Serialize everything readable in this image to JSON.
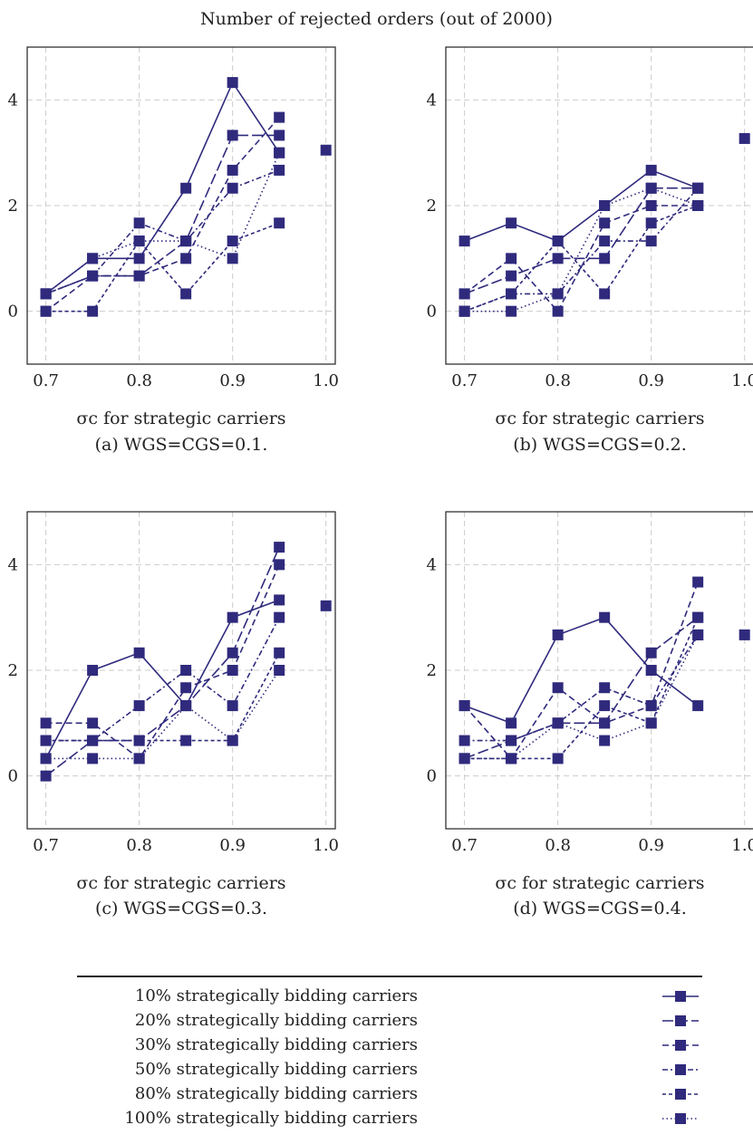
{
  "title": "Number of rejected orders (out of 2000)",
  "colors": {
    "series": "#2f2a7c",
    "grid": "#cccccc"
  },
  "legend": [
    {
      "label": "10% strategically bidding carriers",
      "dash": "solid"
    },
    {
      "label": "20% strategically bidding carriers",
      "dash": "long-dash"
    },
    {
      "label": "30% strategically bidding carriers",
      "dash": "dash"
    },
    {
      "label": "50% strategically bidding carriers",
      "dash": "dash-dot"
    },
    {
      "label": "80% strategically bidding carriers",
      "dash": "short-dash"
    },
    {
      "label": "100% strategically bidding carriers",
      "dash": "dotted"
    }
  ],
  "chart_data": [
    {
      "type": "line",
      "caption": "(a) WGS=CGS=0.1.",
      "xlabel": "σc for strategic carriers",
      "xlim": [
        0.68,
        1.01
      ],
      "ylim": [
        -1,
        5
      ],
      "xticks": [
        "0.7",
        "0.8",
        "0.9",
        "1.0"
      ],
      "yticks": [
        "0",
        "2",
        "4"
      ],
      "x": [
        0.7,
        0.75,
        0.8,
        0.85,
        0.9,
        0.95
      ],
      "grid": true,
      "series": [
        {
          "values": [
            0.33,
            1.0,
            1.0,
            2.33,
            4.33,
            3.0
          ]
        },
        {
          "values": [
            0.33,
            0.67,
            0.67,
            1.33,
            3.33,
            3.33
          ]
        },
        {
          "values": [
            0.0,
            0.67,
            0.67,
            1.0,
            2.67,
            3.67
          ]
        },
        {
          "values": [
            0.33,
            0.67,
            1.67,
            1.33,
            2.33,
            2.67
          ]
        },
        {
          "values": [
            0.0,
            0.0,
            1.33,
            0.33,
            1.33,
            1.67
          ]
        },
        {
          "values": [
            0.33,
            1.0,
            1.33,
            1.33,
            1.0,
            3.0
          ]
        }
      ],
      "points": [
        {
          "x": 1.0,
          "y": 3.05
        }
      ]
    },
    {
      "type": "line",
      "caption": "(b) WGS=CGS=0.2.",
      "xlabel": "σc for strategic carriers",
      "xlim": [
        0.68,
        1.01
      ],
      "ylim": [
        -1,
        5
      ],
      "xticks": [
        "0.7",
        "0.8",
        "0.9",
        "1.0"
      ],
      "yticks": [
        "0",
        "2",
        "4"
      ],
      "x": [
        0.7,
        0.75,
        0.8,
        0.85,
        0.9,
        0.95
      ],
      "grid": true,
      "series": [
        {
          "values": [
            1.33,
            1.67,
            1.33,
            2.0,
            2.67,
            2.33
          ]
        },
        {
          "values": [
            0.33,
            0.67,
            1.0,
            1.0,
            2.33,
            2.33
          ]
        },
        {
          "values": [
            0.33,
            1.0,
            0.0,
            1.67,
            2.0,
            2.0
          ]
        },
        {
          "values": [
            0.0,
            0.33,
            0.33,
            1.33,
            1.33,
            2.33
          ]
        },
        {
          "values": [
            0.0,
            0.33,
            1.33,
            0.33,
            1.67,
            2.0
          ]
        },
        {
          "values": [
            0.0,
            0.0,
            0.33,
            2.0,
            2.33,
            2.0
          ]
        }
      ],
      "points": [
        {
          "x": 1.0,
          "y": 3.27
        }
      ]
    },
    {
      "type": "line",
      "caption": "(c) WGS=CGS=0.3.",
      "xlabel": "σc for strategic carriers",
      "xlim": [
        0.68,
        1.01
      ],
      "ylim": [
        -1,
        5
      ],
      "xticks": [
        "0.7",
        "0.8",
        "0.9",
        "1.0"
      ],
      "yticks": [
        "0",
        "2",
        "4"
      ],
      "x": [
        0.7,
        0.75,
        0.8,
        0.85,
        0.9,
        0.95
      ],
      "grid": true,
      "series": [
        {
          "values": [
            0.33,
            2.0,
            2.33,
            1.33,
            3.0,
            3.33
          ]
        },
        {
          "values": [
            0.0,
            0.67,
            0.67,
            1.33,
            2.33,
            4.33
          ]
        },
        {
          "values": [
            1.0,
            1.0,
            0.33,
            1.67,
            2.0,
            4.0
          ]
        },
        {
          "values": [
            0.67,
            0.67,
            1.33,
            2.0,
            1.33,
            3.0
          ]
        },
        {
          "values": [
            0.67,
            0.67,
            0.67,
            0.67,
            0.67,
            2.33
          ]
        },
        {
          "values": [
            0.33,
            0.33,
            0.33,
            1.33,
            0.67,
            2.0
          ]
        }
      ],
      "points": [
        {
          "x": 1.0,
          "y": 3.22
        }
      ]
    },
    {
      "type": "line",
      "caption": "(d) WGS=CGS=0.4.",
      "xlabel": "σc for strategic carriers",
      "xlim": [
        0.68,
        1.01
      ],
      "ylim": [
        -1,
        5
      ],
      "xticks": [
        "0.7",
        "0.8",
        "0.9",
        "1.0"
      ],
      "yticks": [
        "0",
        "2",
        "4"
      ],
      "x": [
        0.7,
        0.75,
        0.8,
        0.85,
        0.9,
        0.95
      ],
      "grid": true,
      "series": [
        {
          "values": [
            1.33,
            1.0,
            2.67,
            3.0,
            2.0,
            1.33
          ]
        },
        {
          "values": [
            0.33,
            0.67,
            1.0,
            1.0,
            2.33,
            3.0
          ]
        },
        {
          "values": [
            1.33,
            0.33,
            1.67,
            1.0,
            1.33,
            3.67
          ]
        },
        {
          "values": [
            0.67,
            0.67,
            1.0,
            1.67,
            1.33,
            2.67
          ]
        },
        {
          "values": [
            0.33,
            0.33,
            0.33,
            1.33,
            1.0,
            3.0
          ]
        },
        {
          "values": [
            0.33,
            0.33,
            1.0,
            0.67,
            1.0,
            2.67
          ]
        }
      ],
      "points": [
        {
          "x": 1.0,
          "y": 2.67
        }
      ]
    }
  ]
}
